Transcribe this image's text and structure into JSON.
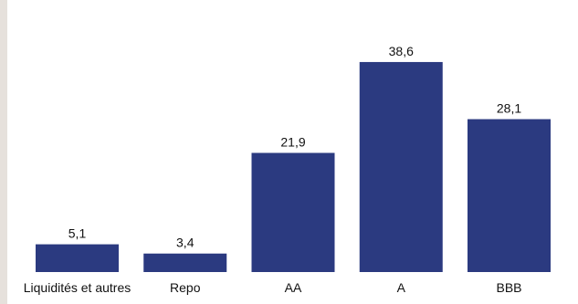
{
  "chart_data": {
    "type": "bar",
    "categories": [
      "Liquidités et autres",
      "Repo",
      "AA",
      "A",
      "BBB"
    ],
    "values": [
      5.1,
      3.4,
      21.9,
      38.6,
      28.1
    ],
    "value_labels": [
      "5,1",
      "3,4",
      "21,9",
      "38,6",
      "28,1"
    ],
    "title": "",
    "xlabel": "",
    "ylabel": "",
    "ylim": [
      0,
      40
    ],
    "grid": false,
    "legend": "none",
    "colors": {
      "bar": "#2b3a80",
      "background": "#ffffff",
      "margin": "#e6e1dc"
    }
  }
}
